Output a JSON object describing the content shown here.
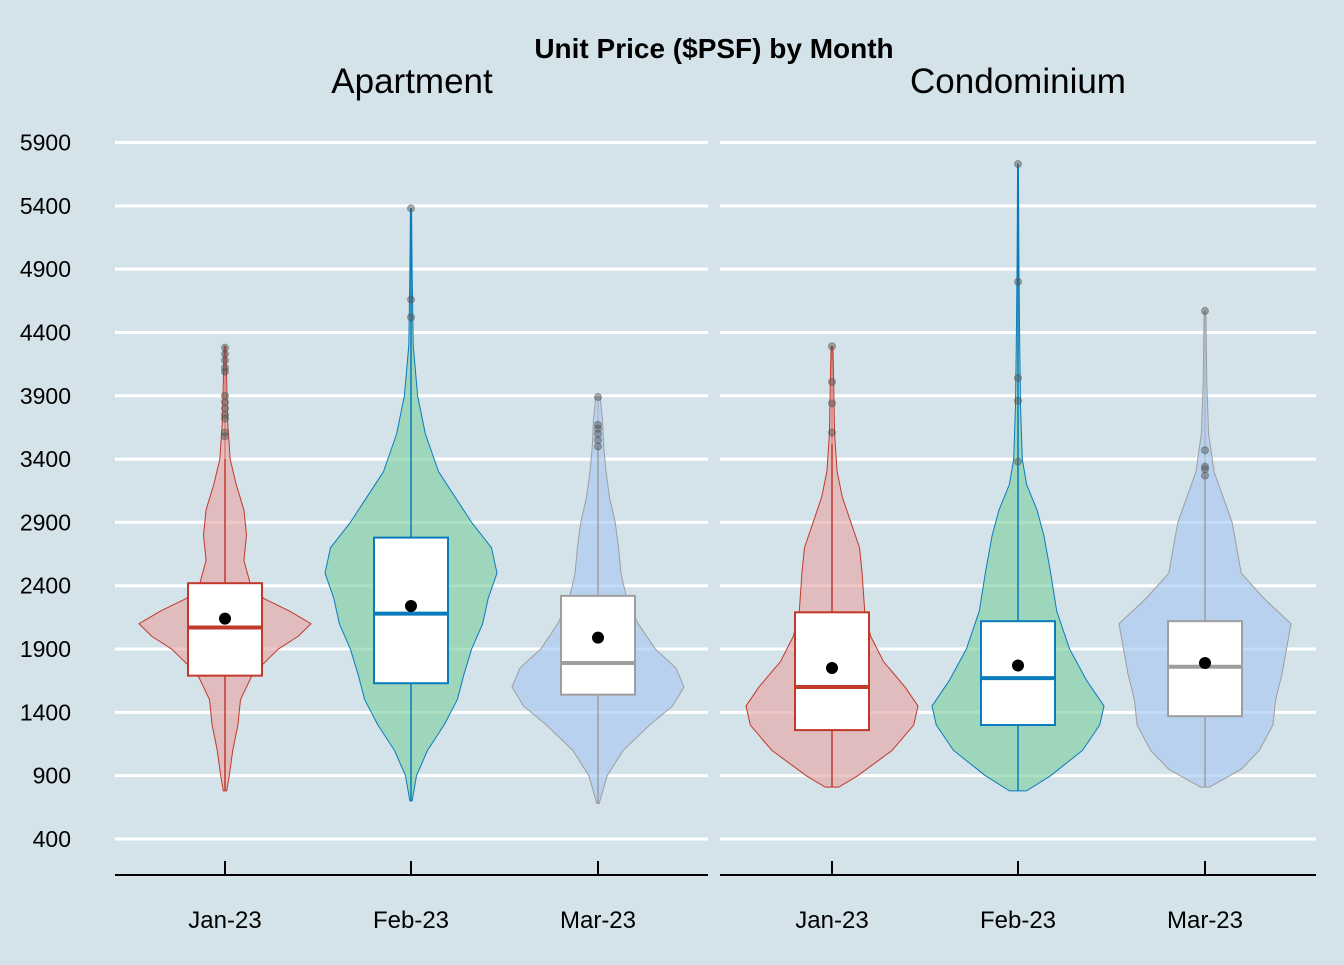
{
  "chart_data": {
    "type": "violin",
    "title": "Unit Price ($PSF) by Month",
    "xlabel": "",
    "ylabel": "",
    "ylim": [
      300,
      6000
    ],
    "y_ticks": [
      400,
      900,
      1400,
      1900,
      2400,
      2900,
      3400,
      3900,
      4400,
      4900,
      5400,
      5900
    ],
    "categories": [
      "Jan-23",
      "Feb-23",
      "Mar-23"
    ],
    "colors": {
      "Jan-23": "#c0392b",
      "Feb-23": "#0a7bbd",
      "Mar-23": "#9e9e9e",
      "fill_Jan-23": "#e6a8a8",
      "fill_Feb-23": "#7fd0a2",
      "fill_Mar-23": "#a8c8f0",
      "background": "#d4e3ea",
      "grid": "#ffffff"
    },
    "grid": true,
    "legend": "none",
    "panels": [
      {
        "name": "Apartment",
        "groups": [
          {
            "category": "Jan-23",
            "min": 780,
            "max": 4290,
            "q1": 1690,
            "median": 2070,
            "q3": 2420,
            "mean": 2140,
            "whisker_low": 780,
            "whisker_high": 3400,
            "outliers": [
              3580,
              3610,
              3720,
              3750,
              3800,
              3850,
              3900,
              4090,
              4120,
              4180,
              4230,
              4280
            ],
            "density": [
              [
                780,
                0.02
              ],
              [
                900,
                0.05
              ],
              [
                1100,
                0.09
              ],
              [
                1300,
                0.15
              ],
              [
                1500,
                0.18
              ],
              [
                1700,
                0.32
              ],
              [
                1900,
                0.62
              ],
              [
                2000,
                0.85
              ],
              [
                2100,
                1.0
              ],
              [
                2200,
                0.75
              ],
              [
                2300,
                0.45
              ],
              [
                2400,
                0.3
              ],
              [
                2600,
                0.22
              ],
              [
                2800,
                0.25
              ],
              [
                3000,
                0.22
              ],
              [
                3200,
                0.13
              ],
              [
                3400,
                0.06
              ],
              [
                3700,
                0.03
              ],
              [
                4000,
                0.02
              ],
              [
                4290,
                0.01
              ]
            ]
          },
          {
            "category": "Feb-23",
            "min": 700,
            "max": 5380,
            "q1": 1630,
            "median": 2180,
            "q3": 2780,
            "mean": 2240,
            "whisker_low": 700,
            "whisker_high": 5380,
            "outliers": [
              4520,
              4660,
              5380
            ],
            "density": [
              [
                700,
                0.01
              ],
              [
                900,
                0.05
              ],
              [
                1100,
                0.15
              ],
              [
                1300,
                0.3
              ],
              [
                1500,
                0.42
              ],
              [
                1700,
                0.48
              ],
              [
                1900,
                0.55
              ],
              [
                2100,
                0.65
              ],
              [
                2300,
                0.7
              ],
              [
                2500,
                0.78
              ],
              [
                2700,
                0.73
              ],
              [
                2900,
                0.55
              ],
              [
                3100,
                0.4
              ],
              [
                3300,
                0.25
              ],
              [
                3600,
                0.13
              ],
              [
                3900,
                0.06
              ],
              [
                4300,
                0.02
              ],
              [
                4900,
                0.01
              ],
              [
                5380,
                0.005
              ]
            ]
          },
          {
            "category": "Mar-23",
            "min": 680,
            "max": 3890,
            "q1": 1540,
            "median": 1790,
            "q3": 2320,
            "mean": 1990,
            "whisker_low": 680,
            "whisker_high": 3500,
            "outliers": [
              3500,
              3550,
              3600,
              3640,
              3670,
              3890
            ],
            "density": [
              [
                680,
                0.01
              ],
              [
                900,
                0.08
              ],
              [
                1100,
                0.22
              ],
              [
                1300,
                0.45
              ],
              [
                1450,
                0.65
              ],
              [
                1600,
                0.75
              ],
              [
                1750,
                0.68
              ],
              [
                1900,
                0.5
              ],
              [
                2100,
                0.35
              ],
              [
                2300,
                0.25
              ],
              [
                2500,
                0.2
              ],
              [
                2700,
                0.18
              ],
              [
                2900,
                0.15
              ],
              [
                3100,
                0.1
              ],
              [
                3300,
                0.07
              ],
              [
                3500,
                0.05
              ],
              [
                3700,
                0.04
              ],
              [
                3890,
                0.02
              ]
            ]
          }
        ]
      },
      {
        "name": "Condominium",
        "groups": [
          {
            "category": "Jan-23",
            "min": 810,
            "max": 4290,
            "q1": 1260,
            "median": 1600,
            "q3": 2190,
            "mean": 1750,
            "whisker_low": 810,
            "whisker_high": 3520,
            "outliers": [
              3610,
              3840,
              4010,
              4290
            ],
            "density": [
              [
                810,
                0.08
              ],
              [
                900,
                0.3
              ],
              [
                1100,
                0.7
              ],
              [
                1300,
                0.95
              ],
              [
                1450,
                1.0
              ],
              [
                1600,
                0.85
              ],
              [
                1800,
                0.6
              ],
              [
                2000,
                0.45
              ],
              [
                2200,
                0.38
              ],
              [
                2500,
                0.35
              ],
              [
                2700,
                0.32
              ],
              [
                2900,
                0.22
              ],
              [
                3100,
                0.12
              ],
              [
                3300,
                0.06
              ],
              [
                3600,
                0.03
              ],
              [
                4000,
                0.02
              ],
              [
                4290,
                0.01
              ]
            ]
          },
          {
            "category": "Feb-23",
            "min": 780,
            "max": 5730,
            "q1": 1300,
            "median": 1670,
            "q3": 2120,
            "mean": 1770,
            "whisker_low": 780,
            "whisker_high": 5730,
            "outliers": [
              3380,
              3860,
              4040,
              4800,
              5730
            ],
            "density": [
              [
                780,
                0.1
              ],
              [
                900,
                0.38
              ],
              [
                1100,
                0.75
              ],
              [
                1300,
                0.95
              ],
              [
                1450,
                1.0
              ],
              [
                1650,
                0.8
              ],
              [
                1900,
                0.6
              ],
              [
                2200,
                0.45
              ],
              [
                2500,
                0.38
              ],
              [
                2800,
                0.3
              ],
              [
                3000,
                0.22
              ],
              [
                3200,
                0.1
              ],
              [
                3400,
                0.05
              ],
              [
                3800,
                0.03
              ],
              [
                4300,
                0.02
              ],
              [
                5000,
                0.01
              ],
              [
                5730,
                0.005
              ]
            ]
          },
          {
            "category": "Mar-23",
            "min": 810,
            "max": 4570,
            "q1": 1370,
            "median": 1760,
            "q3": 2120,
            "mean": 1790,
            "whisker_low": 810,
            "whisker_high": 3250,
            "outliers": [
              3270,
              3320,
              3340,
              3470,
              4570
            ],
            "density": [
              [
                810,
                0.05
              ],
              [
                950,
                0.4
              ],
              [
                1100,
                0.6
              ],
              [
                1300,
                0.75
              ],
              [
                1500,
                0.78
              ],
              [
                1700,
                0.85
              ],
              [
                1900,
                0.9
              ],
              [
                2100,
                0.95
              ],
              [
                2300,
                0.65
              ],
              [
                2500,
                0.4
              ],
              [
                2700,
                0.35
              ],
              [
                2900,
                0.3
              ],
              [
                3100,
                0.2
              ],
              [
                3300,
                0.1
              ],
              [
                3600,
                0.04
              ],
              [
                4000,
                0.02
              ],
              [
                4570,
                0.01
              ]
            ]
          }
        ]
      }
    ]
  }
}
